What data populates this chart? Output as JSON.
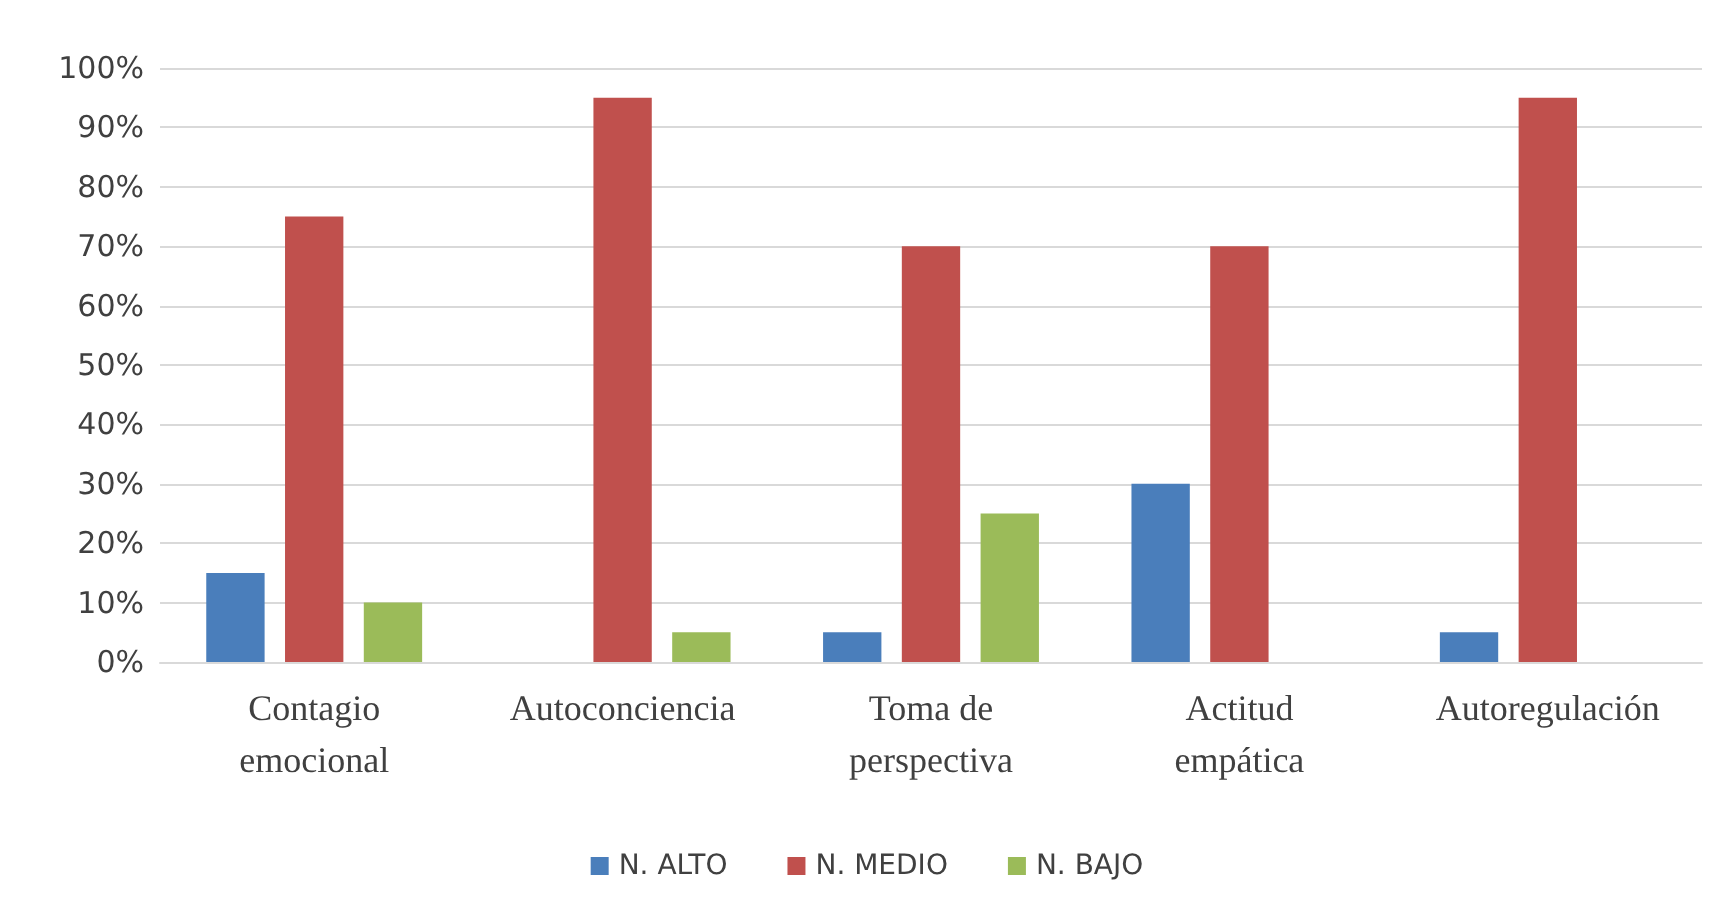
{
  "chart_data": {
    "type": "bar",
    "categories": [
      "Contagio\nemocional",
      "Autoconciencia",
      "Toma de\nperspectiva",
      "Actitud\nempática",
      "Autoregulación"
    ],
    "series": [
      {
        "name": "N. ALTO",
        "color": "#4a7ebb",
        "values": [
          15,
          0,
          5,
          30,
          5
        ]
      },
      {
        "name": "N. MEDIO",
        "color": "#c0504d",
        "values": [
          75,
          95,
          70,
          70,
          95
        ]
      },
      {
        "name": "N. BAJO",
        "color": "#9bbb59",
        "values": [
          10,
          5,
          25,
          0,
          0
        ]
      }
    ],
    "ylim": [
      0,
      100
    ],
    "yticks": [
      {
        "value": 0,
        "label": "0%"
      },
      {
        "value": 10,
        "label": "10%"
      },
      {
        "value": 20,
        "label": "20%"
      },
      {
        "value": 30,
        "label": "30%"
      },
      {
        "value": 40,
        "label": "40%"
      },
      {
        "value": 50,
        "label": "50%"
      },
      {
        "value": 60,
        "label": "60%"
      },
      {
        "value": 70,
        "label": "70%"
      },
      {
        "value": 80,
        "label": "80%"
      },
      {
        "value": 90,
        "label": "90%"
      },
      {
        "value": 100,
        "label": "100%"
      }
    ],
    "grid": "y",
    "legend": "bottom"
  }
}
